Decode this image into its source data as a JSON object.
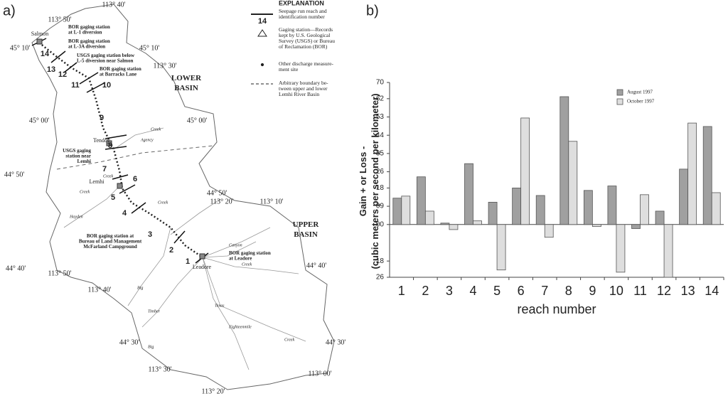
{
  "panel_labels": [
    "a)",
    "b)"
  ],
  "map": {
    "explanation": {
      "title": "EXPLANATION",
      "reach_symbol": "14",
      "items": [
        [
          "Seepage run reach and",
          "identification number"
        ],
        [
          "Gaging station—Records",
          "kept by U.S. Geological",
          "Survey (USGS) or Bureau",
          "of Reclamation (BOR)"
        ],
        [
          "Other discharge measure-",
          "ment site"
        ],
        [
          "Arbitrary boundary be-",
          "tween upper and lower",
          "Lemhi River Basin"
        ]
      ]
    },
    "basins": [
      [
        "LOWER",
        "BASIN"
      ],
      [
        "UPPER",
        "BASIN"
      ]
    ],
    "coordinates": [
      "113° 40'",
      "113° 50'",
      "45° 10'",
      "45° 10'",
      "113° 30'",
      "45° 00'",
      "45° 00'",
      "44° 50'",
      "44° 50'",
      "113° 20'",
      "113° 10'",
      "44° 40'",
      "113° 50'",
      "44° 40'",
      "113° 40'",
      "44° 30'",
      "44° 30'",
      "113° 30'",
      "113° 00'",
      "113° 20'"
    ],
    "towns": [
      "Salmon",
      "Tendoy",
      "Lemhi",
      "Leadore"
    ],
    "stations": [
      [
        "BOR gaging station",
        "at L-1 diversion"
      ],
      [
        "BOR gaging station",
        "at L-3A diversion"
      ],
      [
        "USGS gaging station below",
        "L-5 diversion near Salmon"
      ],
      [
        "BOR gaging station",
        "at Barracks Lane"
      ],
      [
        "USGS gaging",
        "station near",
        "Lemhi"
      ],
      [
        "BOR gaging station at",
        "Bureau of Land Management",
        "McFarland Campground"
      ],
      [
        "BOR gaging station",
        "at Leadore"
      ]
    ],
    "reaches": [
      "1",
      "2",
      "3",
      "4",
      "5",
      "6",
      "7",
      "8",
      "9",
      "10",
      "11",
      "12",
      "13",
      "14"
    ],
    "streams": [
      "Creek",
      "Agency",
      "Creek",
      "Hayden",
      "Creek",
      "Canyon",
      "Creek",
      "Big",
      "Timber",
      "Texas",
      "Eighteenmile",
      "Creek",
      "Big",
      "Creek"
    ]
  },
  "chart_data": {
    "type": "bar",
    "y_label": [
      "Gain + or Loss -",
      "(cubic meters per second per kilometer)"
    ],
    "x_label": "reach number",
    "categories": [
      "1",
      "2",
      "3",
      "4",
      "5",
      "6",
      "7",
      "8",
      "9",
      "10",
      "11",
      "12",
      "13",
      "14"
    ],
    "series": [
      {
        "name": "August 1997",
        "color": "#a0a0a0",
        "values": [
          13,
          23.5,
          0.7,
          30,
          11,
          18,
          14.3,
          63,
          16.8,
          19,
          -2,
          6.6,
          27.3,
          48.3
        ]
      },
      {
        "name": "October 1997",
        "color": "#dedede",
        "values": [
          14,
          6.6,
          -2.5,
          1.8,
          -22.4,
          52.5,
          -6.3,
          41,
          -1,
          -23.5,
          14.7,
          -26,
          50,
          15.7
        ]
      }
    ],
    "ylim": [
      -26,
      70
    ],
    "yticks": [
      70,
      62,
      53,
      44,
      35,
      26,
      18,
      {
        "value": 9,
        "label": "09"
      },
      {
        "value": 0,
        "label": "00"
      },
      {
        "value": -18,
        "label": "18"
      },
      {
        "value": -26,
        "label": "26"
      }
    ],
    "legend": "upper right"
  }
}
